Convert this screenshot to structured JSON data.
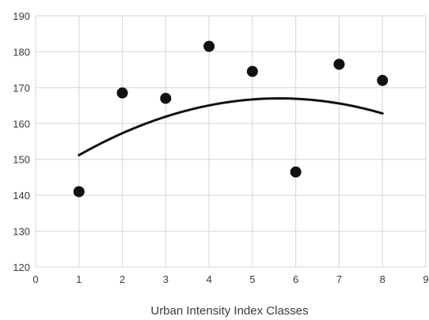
{
  "chart_data": {
    "type": "scatter",
    "title": "",
    "xlabel": "Urban Intensity Index Classes",
    "ylabel": "",
    "xlim": [
      0,
      9
    ],
    "ylim": [
      120,
      190
    ],
    "x_ticks": [
      "0",
      "1",
      "2",
      "3",
      "4",
      "5",
      "6",
      "7",
      "8",
      "9"
    ],
    "y_ticks": [
      "120",
      "130",
      "140",
      "150",
      "160",
      "170",
      "180",
      "190"
    ],
    "grid": true,
    "legend": "none",
    "series": [
      {
        "x": [
          1,
          2,
          3,
          4,
          5,
          6,
          7,
          8
        ],
        "y": [
          141,
          168.5,
          167,
          181.5,
          174.5,
          146.5,
          176.5,
          172
        ]
      }
    ],
    "trendline": {
      "type": "polynomial",
      "order": 2,
      "x_range": [
        1,
        8
      ],
      "coefficients": [
        -0.74,
        8.32,
        143.6
      ]
    },
    "colors": {
      "points": "#111111",
      "trendline": "#111111",
      "grid": "#d4d4d4",
      "text": "#3a3a3a"
    }
  }
}
